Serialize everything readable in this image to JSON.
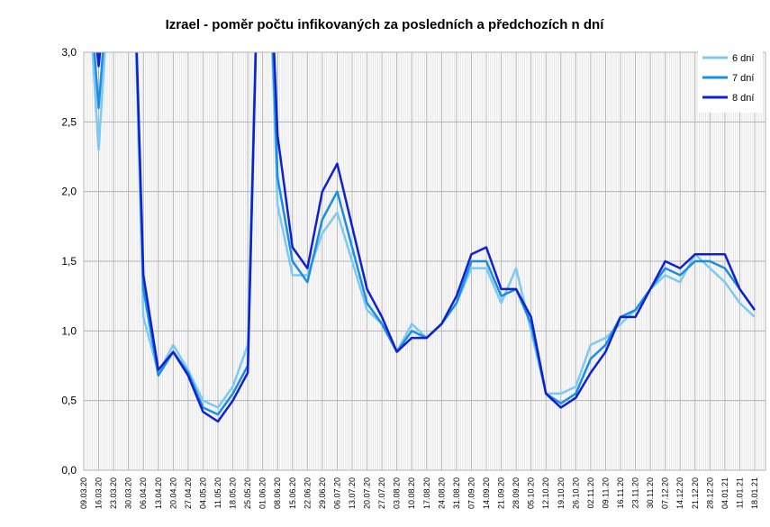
{
  "chart_data": {
    "type": "line",
    "title": "Izrael - poměr počtu infikovaných za posledních a předchozích n dní",
    "categories": [
      "09.03.20",
      "16.03.20",
      "23.03.20",
      "30.03.20",
      "06.04.20",
      "13.04.20",
      "20.04.20",
      "27.04.20",
      "04.05.20",
      "11.05.20",
      "18.05.20",
      "25.05.20",
      "01.06.20",
      "08.06.20",
      "15.06.20",
      "22.06.20",
      "29.06.20",
      "06.07.20",
      "13.07.20",
      "20.07.20",
      "27.07.20",
      "03.08.20",
      "10.08.20",
      "17.08.20",
      "24.08.20",
      "31.08.20",
      "07.09.20",
      "14.09.20",
      "21.09.20",
      "28.09.20",
      "05.10.20",
      "12.10.20",
      "19.10.20",
      "26.10.20",
      "02.11.20",
      "09.11.20",
      "16.11.20",
      "23.11.20",
      "30.11.20",
      "07.12.20",
      "14.12.20",
      "21.12.20",
      "28.12.20",
      "04.01.21",
      "11.01.21",
      "18.01.21"
    ],
    "series": [
      {
        "name": "6 dní",
        "color": "#7ec8f4",
        "values": [
          4,
          2.3,
          4,
          5,
          1.1,
          0.7,
          0.9,
          0.72,
          0.5,
          0.45,
          0.6,
          0.9,
          5,
          1.9,
          1.4,
          1.4,
          1.7,
          1.85,
          1.5,
          1.15,
          1.05,
          0.85,
          1.05,
          0.95,
          1.05,
          1.2,
          1.45,
          1.45,
          1.2,
          1.45,
          1.0,
          0.55,
          0.55,
          0.6,
          0.9,
          0.95,
          1.05,
          1.15,
          1.3,
          1.4,
          1.35,
          1.55,
          1.45,
          1.35,
          1.2,
          1.1
        ]
      },
      {
        "name": "7 dní",
        "color": "#1a8fe0",
        "values": [
          4,
          2.6,
          4,
          5,
          1.3,
          0.68,
          0.85,
          0.7,
          0.45,
          0.4,
          0.55,
          0.75,
          5,
          2.1,
          1.5,
          1.35,
          1.8,
          2.0,
          1.6,
          1.2,
          1.05,
          0.85,
          1.0,
          0.95,
          1.05,
          1.2,
          1.5,
          1.5,
          1.25,
          1.3,
          1.05,
          0.55,
          0.48,
          0.55,
          0.8,
          0.9,
          1.1,
          1.15,
          1.3,
          1.45,
          1.4,
          1.5,
          1.5,
          1.45,
          1.3,
          1.15
        ]
      },
      {
        "name": "8 dní",
        "color": "#1020d0",
        "values": [
          4,
          2.9,
          4,
          5,
          1.4,
          0.72,
          0.85,
          0.68,
          0.42,
          0.35,
          0.5,
          0.7,
          5,
          2.4,
          1.6,
          1.45,
          2.0,
          2.2,
          1.75,
          1.3,
          1.1,
          0.85,
          0.95,
          0.95,
          1.05,
          1.25,
          1.55,
          1.6,
          1.3,
          1.3,
          1.1,
          0.55,
          0.45,
          0.52,
          0.7,
          0.85,
          1.1,
          1.1,
          1.3,
          1.5,
          1.45,
          1.55,
          1.55,
          1.55,
          1.3,
          1.15
        ]
      }
    ],
    "ylim": [
      0,
      3
    ],
    "yticks": [
      {
        "value": 0,
        "label": "0,0"
      },
      {
        "value": 0.5,
        "label": "0,5"
      },
      {
        "value": 1,
        "label": "1,0"
      },
      {
        "value": 1.5,
        "label": "1,5"
      },
      {
        "value": 2,
        "label": "2,0"
      },
      {
        "value": 2.5,
        "label": "2,5"
      },
      {
        "value": 3,
        "label": "3,0"
      }
    ],
    "grid": true,
    "legend": "top-right"
  }
}
